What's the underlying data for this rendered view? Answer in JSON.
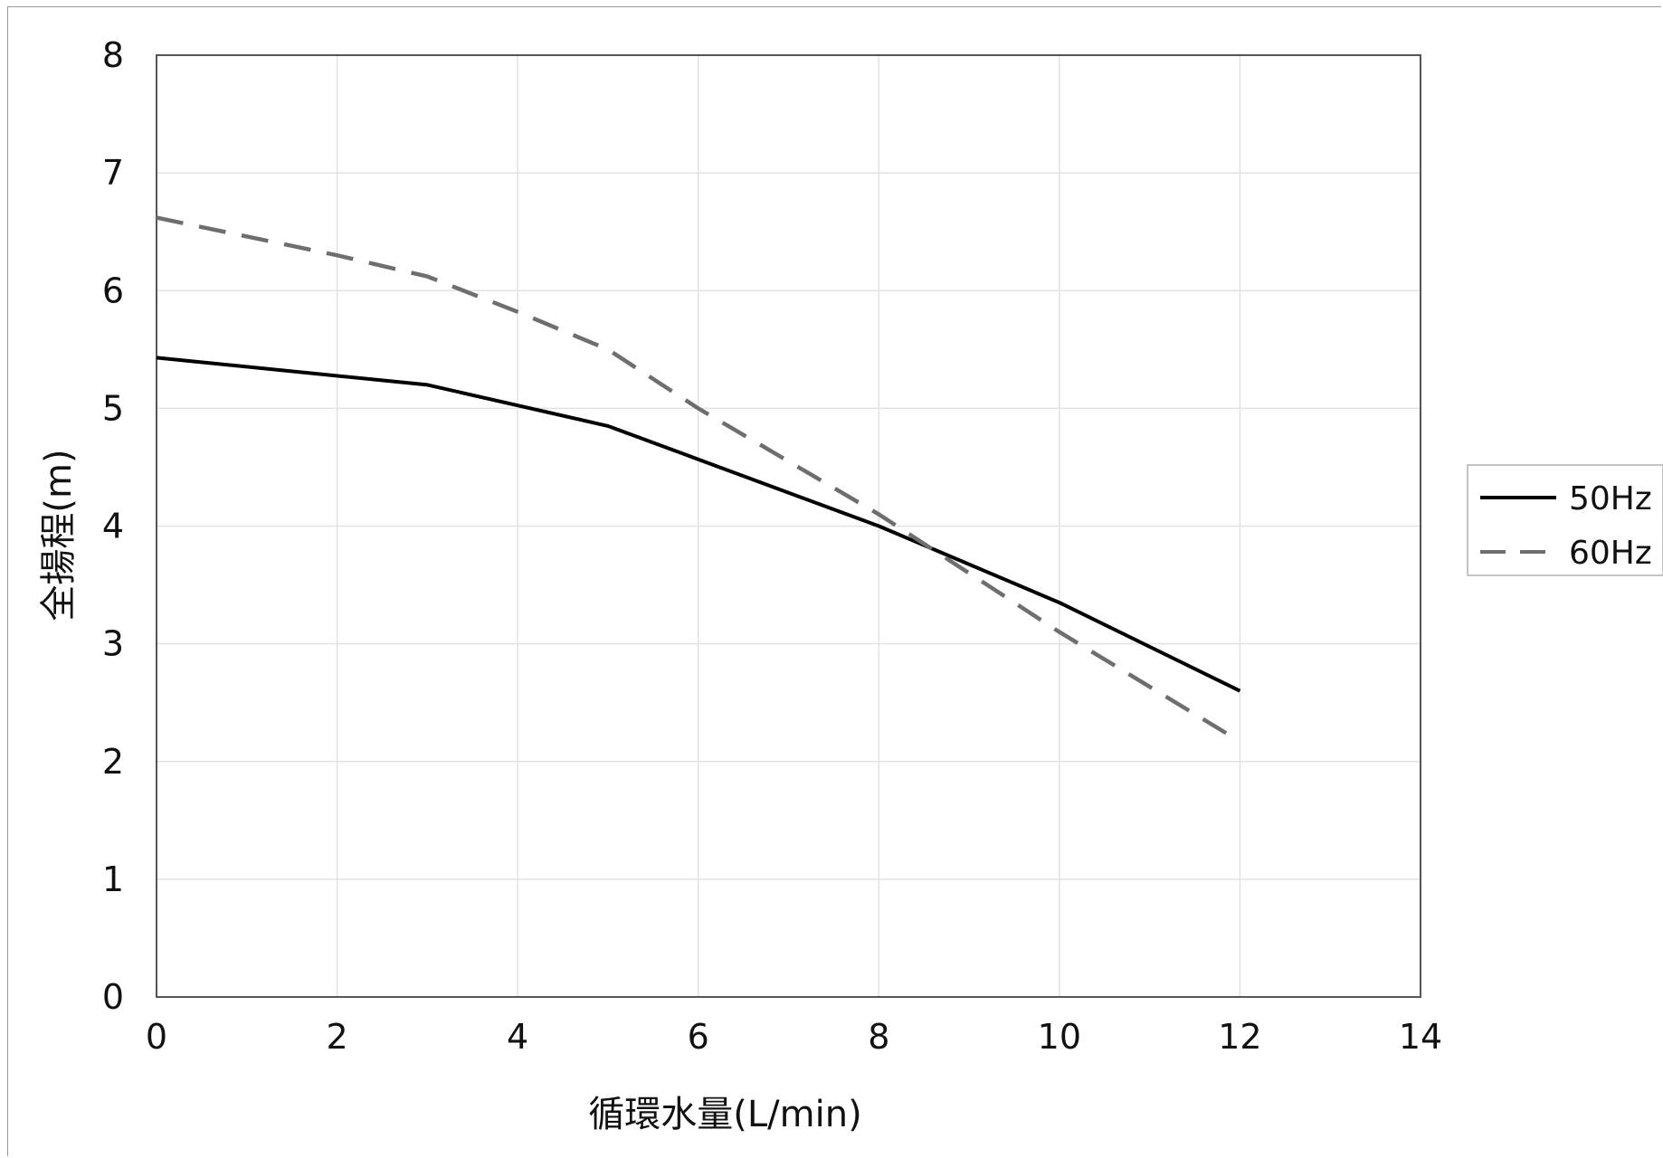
{
  "chart_data": {
    "type": "line",
    "title": "",
    "xlabel": "循環水量(L/min)",
    "ylabel": "全揚程(m)",
    "xlim": [
      0,
      14
    ],
    "ylim": [
      0,
      8
    ],
    "x_ticks": [
      0,
      2,
      4,
      6,
      8,
      10,
      12,
      14
    ],
    "y_ticks": [
      0,
      1,
      2,
      3,
      4,
      5,
      6,
      7,
      8
    ],
    "x_tick_labels": [
      "0",
      "2",
      "4",
      "6",
      "8",
      "10",
      "12",
      "14"
    ],
    "y_tick_labels": [
      "0",
      "1",
      "2",
      "3",
      "4",
      "5",
      "6",
      "7",
      "8"
    ],
    "grid": true,
    "legend_position": "right",
    "series": [
      {
        "name": "50Hz",
        "color": "#000000",
        "dash": "solid",
        "x": [
          0,
          3,
          5,
          8,
          10,
          12
        ],
        "y": [
          5.43,
          5.2,
          4.85,
          4.0,
          3.35,
          2.6
        ]
      },
      {
        "name": "60Hz",
        "color": "#6e6e6e",
        "dash": "dashed",
        "x": [
          0,
          2,
          3,
          4,
          5,
          6,
          8,
          10,
          12
        ],
        "y": [
          6.62,
          6.3,
          6.12,
          5.82,
          5.5,
          5.0,
          4.1,
          3.1,
          2.17
        ]
      }
    ]
  }
}
